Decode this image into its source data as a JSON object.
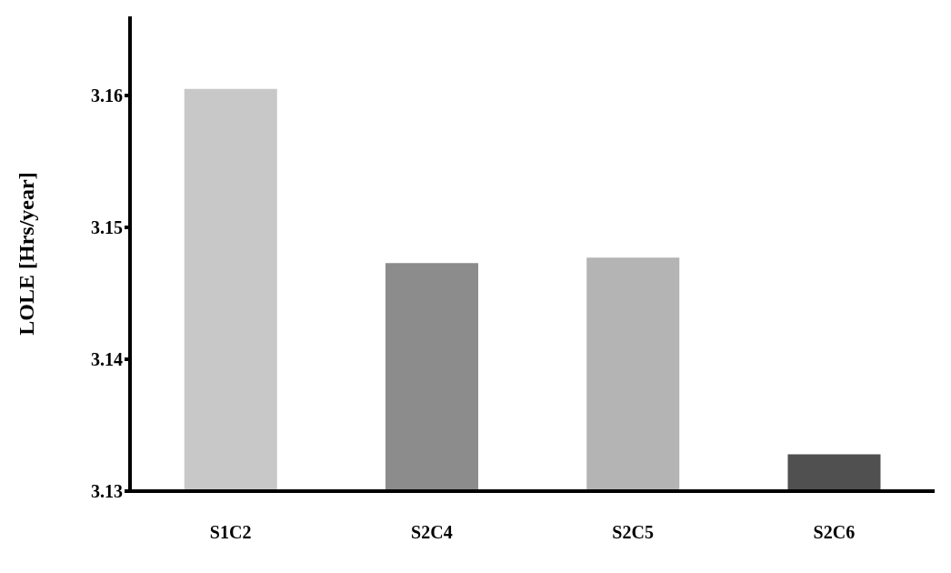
{
  "chart_data": {
    "type": "bar",
    "ylabel": "LOLE [Hrs/year]",
    "categories": [
      "S1C2",
      "S2C4",
      "S2C5",
      "S2C6"
    ],
    "values": [
      3.1605,
      3.1473,
      3.1477,
      3.1328
    ],
    "colors": [
      "#c8c8c8",
      "#8c8c8c",
      "#b4b4b4",
      "#505050"
    ],
    "ylim": [
      3.13,
      3.166
    ],
    "yticks": [
      3.13,
      3.14,
      3.15,
      3.16
    ],
    "grid": false
  }
}
